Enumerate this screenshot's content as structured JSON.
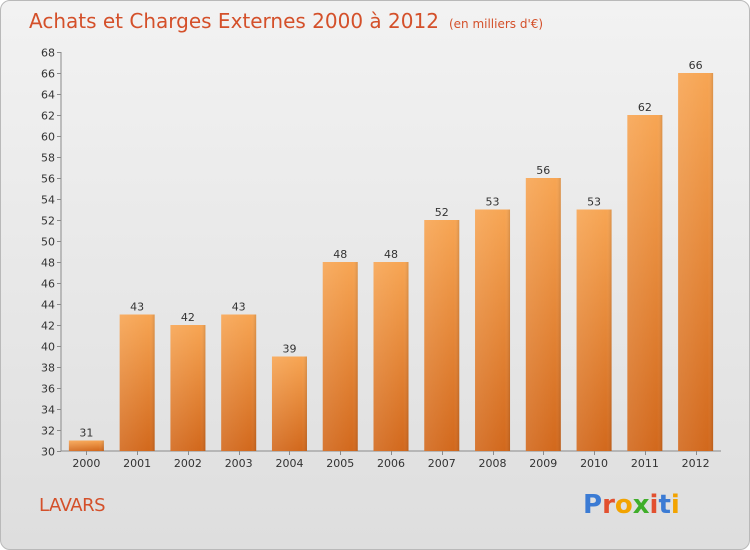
{
  "header": {
    "title": "Achats et Charges Externes 2000 à 2012",
    "unit": "(en milliers d'€)"
  },
  "footer": {
    "commune": "LAVARS",
    "logo": "Proxiti"
  },
  "colors": {
    "bar_top": "#f7a553",
    "bar_bottom": "#d2681c",
    "title": "#d4502a",
    "logo_letters": [
      "#3b7bd4",
      "#e2502f",
      "#f2a300",
      "#3fae2a",
      "#e2502f",
      "#3b7bd4",
      "#f2a300"
    ]
  },
  "chart_data": {
    "type": "bar",
    "title": "Achats et Charges Externes 2000 à 2012",
    "xlabel": "",
    "ylabel": "",
    "categories": [
      "2000",
      "2001",
      "2002",
      "2003",
      "2004",
      "2005",
      "2006",
      "2007",
      "2008",
      "2009",
      "2010",
      "2011",
      "2012"
    ],
    "values": [
      31,
      43,
      42,
      43,
      39,
      48,
      48,
      52,
      53,
      56,
      53,
      62,
      66
    ],
    "ylim": [
      30,
      68
    ],
    "yticks": [
      30,
      32,
      34,
      36,
      38,
      40,
      42,
      44,
      46,
      48,
      50,
      52,
      54,
      56,
      58,
      60,
      62,
      64,
      66,
      68
    ],
    "grid": false,
    "legend": "none"
  }
}
